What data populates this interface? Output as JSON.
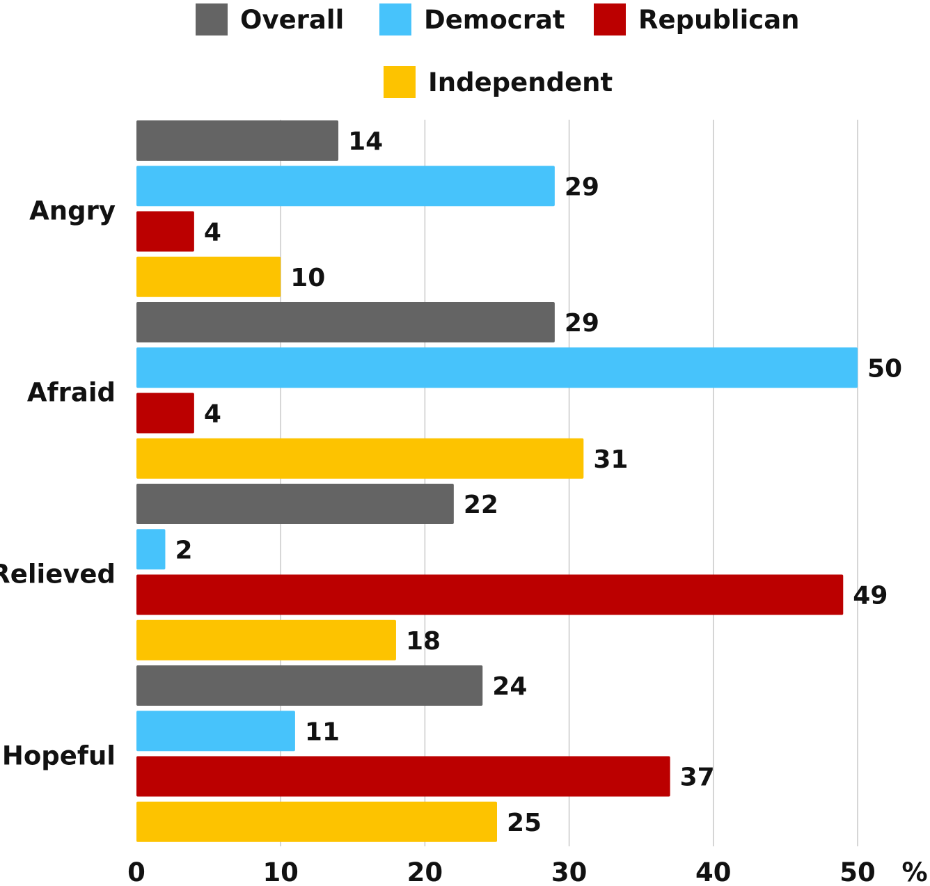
{
  "chart_data": {
    "type": "bar",
    "orientation": "horizontal",
    "categories": [
      "Angry",
      "Afraid",
      "Relieved",
      "Hopeful"
    ],
    "series": [
      {
        "name": "Overall",
        "color": "#646464",
        "values": [
          14,
          29,
          22,
          24
        ]
      },
      {
        "name": "Democrat",
        "color": "#47c3fb",
        "values": [
          29,
          50,
          2,
          11
        ]
      },
      {
        "name": "Republican",
        "color": "#bb0000",
        "values": [
          4,
          4,
          49,
          37
        ]
      },
      {
        "name": "Independent",
        "color": "#fdc300",
        "values": [
          10,
          31,
          18,
          25
        ]
      }
    ],
    "xlim": [
      0,
      50
    ],
    "xticks": [
      "0",
      "10",
      "20",
      "30",
      "40",
      "50"
    ],
    "unit_label": "%",
    "grid": "vertical",
    "legend_placement": "top"
  }
}
